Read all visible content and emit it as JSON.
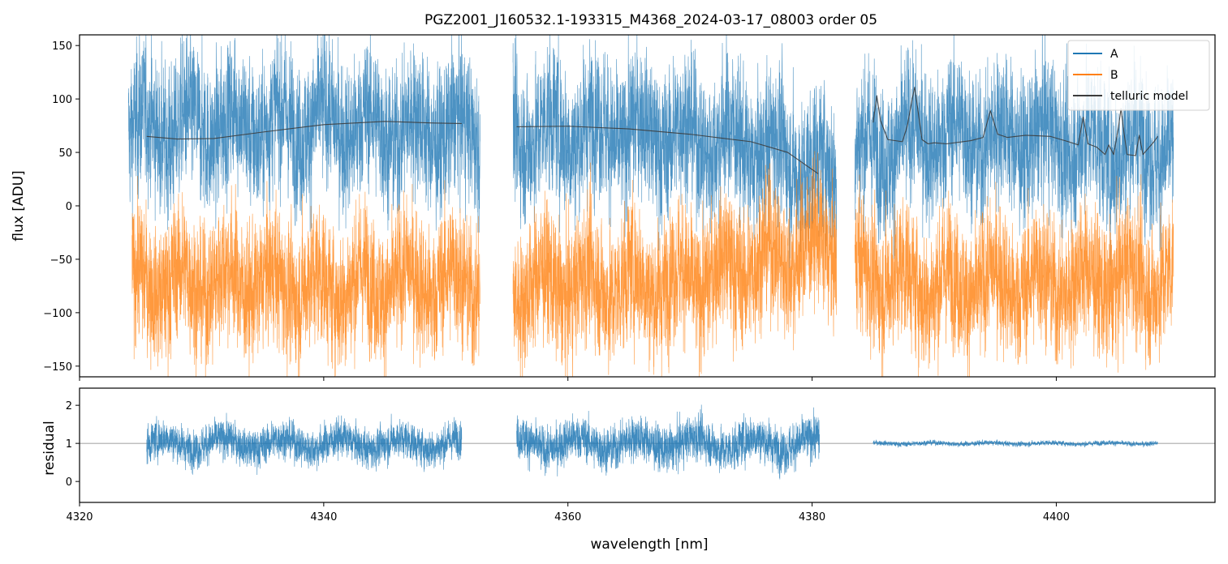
{
  "chart_data": [
    {
      "panel": "top",
      "type": "line",
      "title": "PGZ2001_J160532.1-193315_M4368_2024-03-17_08003  order 05",
      "xlabel": "",
      "ylabel": "flux [ADU]",
      "xlim": [
        4320,
        4413
      ],
      "ylim": [
        -160,
        160
      ],
      "yticks": [
        -150,
        -100,
        -50,
        0,
        50,
        100,
        150
      ],
      "xticks": [
        4320,
        4340,
        4360,
        4380,
        4400
      ],
      "show_xtick_labels": false,
      "legend_position": "upper right",
      "series": [
        {
          "name": "A",
          "color": "#1f77b4",
          "style": "noisy",
          "segments": [
            [
              4324.0,
              4352.8
            ],
            [
              4355.5,
              4382.0
            ],
            [
              4383.5,
              4409.6
            ]
          ],
          "level": [
            [
              4324,
              72
            ],
            [
              4332,
              75
            ],
            [
              4340,
              78
            ],
            [
              4346,
              72
            ],
            [
              4352.8,
              70
            ],
            [
              4355.5,
              68
            ],
            [
              4362,
              72
            ],
            [
              4370,
              66
            ],
            [
              4376,
              55
            ],
            [
              4382,
              30
            ],
            [
              4383.5,
              50
            ],
            [
              4390,
              66
            ],
            [
              4398,
              64
            ],
            [
              4404,
              56
            ],
            [
              4409.6,
              55
            ]
          ],
          "noise": 45
        },
        {
          "name": "B",
          "color": "#ff7f0e",
          "style": "noisy",
          "segments": [
            [
              4324.3,
              4352.8
            ],
            [
              4355.5,
              4382.0
            ],
            [
              4383.5,
              4409.6
            ]
          ],
          "level": [
            [
              4324,
              -72
            ],
            [
              4332,
              -70
            ],
            [
              4340,
              -75
            ],
            [
              4346,
              -72
            ],
            [
              4352.8,
              -70
            ],
            [
              4355.5,
              -75
            ],
            [
              4362,
              -73
            ],
            [
              4370,
              -70
            ],
            [
              4376,
              -50
            ],
            [
              4382,
              -35
            ],
            [
              4383.5,
              -60
            ],
            [
              4390,
              -74
            ],
            [
              4398,
              -72
            ],
            [
              4404,
              -70
            ],
            [
              4409.6,
              -68
            ]
          ],
          "noise": 42
        },
        {
          "name": "telluric model",
          "color": "#3c3c3c",
          "style": "smooth",
          "segments": [
            [
              [
                4325.5,
                65
              ],
              [
                4328,
                62.5
              ],
              [
                4331,
                63
              ],
              [
                4335,
                69
              ],
              [
                4340,
                76
              ],
              [
                4345,
                79
              ],
              [
                4349,
                77.5
              ],
              [
                4351.3,
                77
              ]
            ],
            [
              [
                4355.8,
                74
              ],
              [
                4360,
                74.5
              ],
              [
                4365,
                72
              ],
              [
                4370,
                67
              ],
              [
                4375,
                60
              ],
              [
                4378,
                50
              ],
              [
                4380.5,
                30
              ]
            ],
            [
              [
                4385.0,
                78
              ],
              [
                4385.3,
                103
              ],
              [
                4385.6,
                80
              ],
              [
                4386.2,
                62
              ],
              [
                4387.4,
                60
              ],
              [
                4387.8,
                75
              ],
              [
                4388.2,
                100
              ],
              [
                4388.4,
                111
              ],
              [
                4388.6,
                95
              ],
              [
                4389.0,
                62
              ],
              [
                4389.5,
                58
              ],
              [
                4390.0,
                59
              ],
              [
                4391.0,
                58
              ],
              [
                4393.0,
                61
              ],
              [
                4394.0,
                64
              ],
              [
                4394.6,
                89
              ],
              [
                4395.2,
                67
              ],
              [
                4396.0,
                64
              ],
              [
                4397.5,
                66
              ],
              [
                4399.5,
                65
              ],
              [
                4401.0,
                60
              ],
              [
                4401.8,
                57
              ],
              [
                4402.2,
                83
              ],
              [
                4402.6,
                58
              ],
              [
                4403.3,
                55
              ],
              [
                4404.0,
                48
              ],
              [
                4404.3,
                57
              ],
              [
                4404.7,
                48
              ],
              [
                4405.1,
                74
              ],
              [
                4405.3,
                91
              ],
              [
                4405.5,
                72
              ],
              [
                4405.8,
                48
              ],
              [
                4406.5,
                47
              ],
              [
                4406.8,
                66
              ],
              [
                4407.1,
                48
              ],
              [
                4408.0,
                60
              ],
              [
                4408.3,
                65
              ]
            ]
          ]
        }
      ]
    },
    {
      "panel": "bottom",
      "type": "line",
      "title": "",
      "xlabel": "wavelength [nm]",
      "ylabel": "residual",
      "xlim": [
        4320,
        4413
      ],
      "ylim": [
        -0.55,
        2.45
      ],
      "yticks": [
        0,
        1,
        2
      ],
      "xticks": [
        4320,
        4340,
        4360,
        4380,
        4400
      ],
      "reference_line": 1,
      "reference_color": "#808080",
      "series": [
        {
          "color": "#1f77b4",
          "style": "noisy",
          "segments": [
            [
              4325.5,
              4351.3
            ],
            [
              4355.8,
              4380.6
            ],
            [
              4385.0,
              4408.3
            ]
          ],
          "noise_by_segment": [
            0.6,
            0.7,
            0.08
          ]
        }
      ]
    }
  ]
}
